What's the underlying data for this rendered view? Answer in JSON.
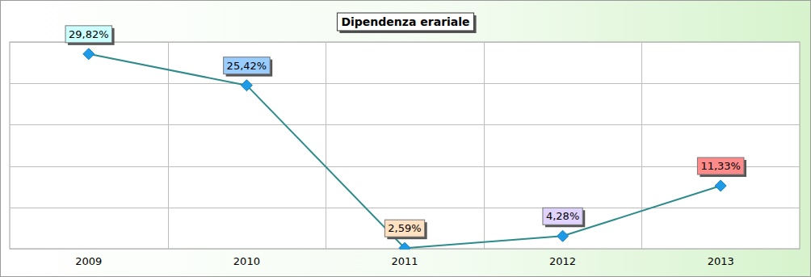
{
  "chart_data": {
    "type": "line",
    "title": "Dipendenza erariale",
    "categories": [
      "2009",
      "2010",
      "2011",
      "2012",
      "2013"
    ],
    "values": [
      29.82,
      25.42,
      2.59,
      4.28,
      11.33
    ],
    "value_labels": [
      "29,82%",
      "25,42%",
      "2,59%",
      "4,28%",
      "11,33%"
    ],
    "data_labels": true,
    "color": "#2e8b8b",
    "colors": [
      "#ccffff",
      "#99ccff",
      "#ffe0c0",
      "#e0d4ff",
      "#ff8a8a"
    ],
    "marker": "diamond",
    "ylim": [
      2.5,
      31.5
    ],
    "yticks": [
      2.5,
      8.3,
      14.1,
      19.9,
      25.7,
      31.5
    ],
    "grid": true,
    "tick_labels": "x"
  }
}
